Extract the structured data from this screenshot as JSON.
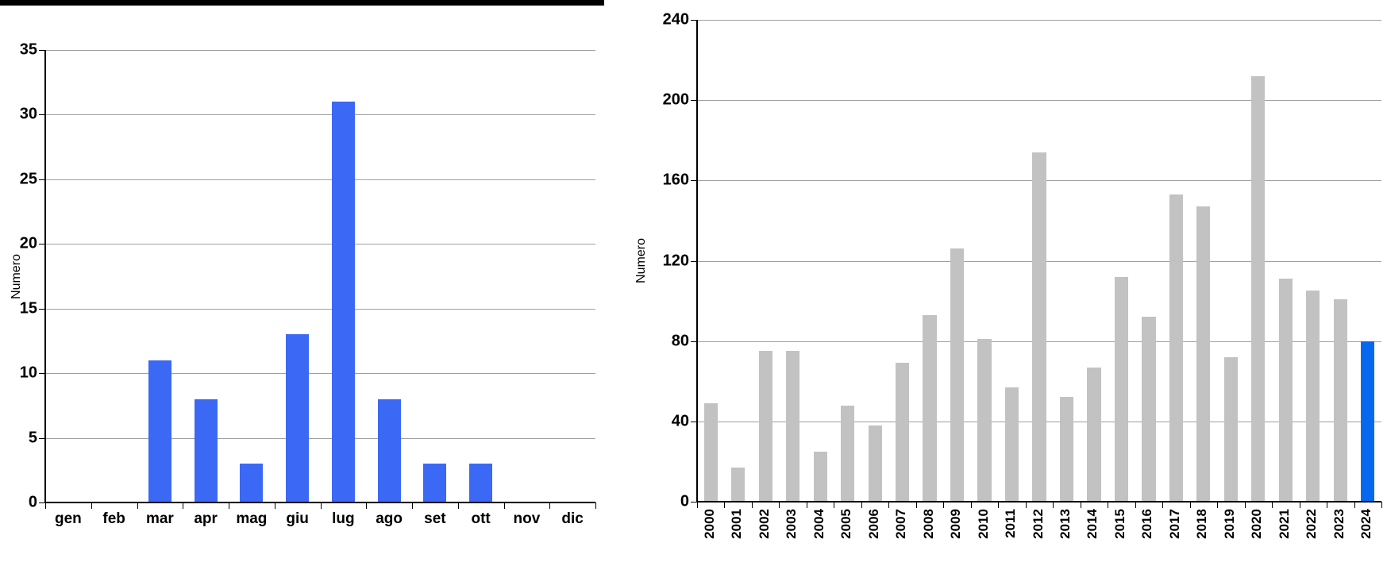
{
  "page": {
    "background": "#ffffff",
    "top_rule_color": "#000000",
    "gridline_color": "#a0a0a0",
    "axis_color": "#000000"
  },
  "chart_data": [
    {
      "type": "bar",
      "title": "",
      "ylabel": "Numero",
      "xlabel": "",
      "categories": [
        "gen",
        "feb",
        "mar",
        "apr",
        "mag",
        "giu",
        "lug",
        "ago",
        "set",
        "ott",
        "nov",
        "dic"
      ],
      "values": [
        0,
        0,
        11,
        8,
        3,
        13,
        31,
        8,
        3,
        3,
        0,
        0
      ],
      "ylim": [
        0,
        35
      ],
      "ytick_step": 5,
      "bar_color": "#3b69f5",
      "grid": true,
      "legend_position": "none"
    },
    {
      "type": "bar",
      "title": "",
      "ylabel": "Numero",
      "xlabel": "",
      "categories": [
        "2000",
        "2001",
        "2002",
        "2003",
        "2004",
        "2005",
        "2006",
        "2007",
        "2008",
        "2009",
        "2010",
        "2011",
        "2012",
        "2013",
        "2014",
        "2015",
        "2016",
        "2017",
        "2018",
        "2019",
        "2020",
        "2021",
        "2022",
        "2023",
        "2024"
      ],
      "values": [
        49,
        17,
        75,
        75,
        25,
        48,
        38,
        69,
        93,
        126,
        81,
        57,
        174,
        52,
        67,
        112,
        92,
        153,
        147,
        72,
        212,
        111,
        105,
        101,
        80
      ],
      "ylim": [
        0,
        240
      ],
      "ytick_step": 40,
      "bar_color": "#c2c2c2",
      "highlight": {
        "index": 24,
        "color": "#0568ef"
      },
      "grid": true,
      "legend_position": "none"
    }
  ]
}
